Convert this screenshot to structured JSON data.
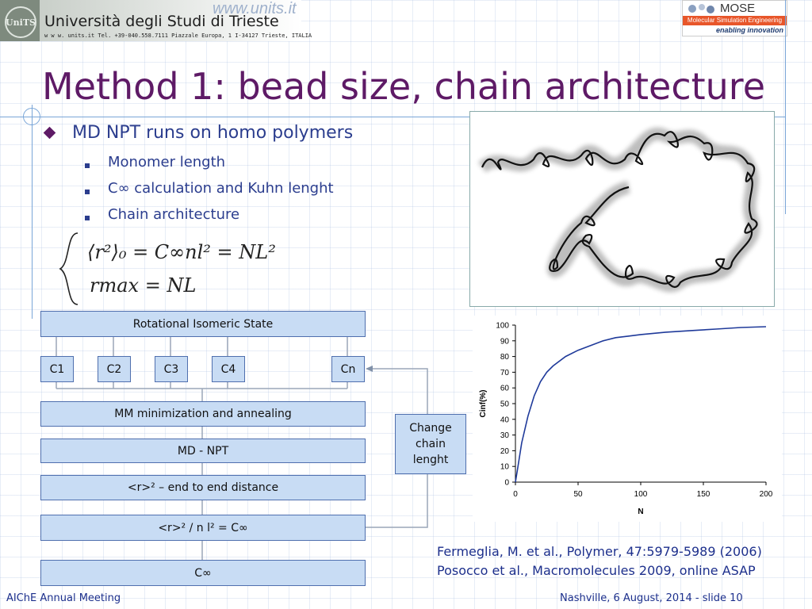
{
  "header": {
    "crest_text": "UniTS",
    "university": "Università degli Studi di Trieste",
    "address": "w w w. units.it  Tel. +39-040.558.7111  Piazzale Europa, 1  I-34127 Trieste, ITALIA",
    "units_logo": "www.units.it",
    "mose_name": "MOSE",
    "mose_subtitle": "Molecular Simulation Engineering",
    "mose_tagline": "enabling innovation"
  },
  "slide": {
    "title": "Method 1: bead size, chain architecture",
    "bullet_main": "MD NPT runs on homo polymers",
    "sub_bullets": [
      "Monomer length",
      "C∞ calculation and Kuhn lenght",
      "Chain architecture"
    ],
    "equation_1": "⟨r²⟩₀ = C∞nl² = NL²",
    "equation_2": "rmax = NL"
  },
  "flowchart": {
    "top": "Rotational Isomeric State",
    "chains": [
      "C1",
      "C2",
      "C3",
      "C4",
      "Cn"
    ],
    "steps": [
      "MM minimization and annealing",
      "MD - NPT",
      "<r>² – end to end distance",
      "<r>² / n l² = C∞",
      "C∞"
    ],
    "side_box": [
      "Change",
      "chain",
      "lenght"
    ]
  },
  "chart_data": {
    "type": "line",
    "xlabel": "N",
    "ylabel": "Cinf(%)",
    "xlim": [
      0,
      200
    ],
    "ylim": [
      0,
      100
    ],
    "x_ticks": [
      "0",
      "50",
      "100",
      "150",
      "200"
    ],
    "y_ticks": [
      "0",
      "10",
      "20",
      "30",
      "40",
      "50",
      "60",
      "70",
      "80",
      "90",
      "100"
    ],
    "grid": false,
    "x": [
      0,
      2,
      5,
      10,
      15,
      20,
      25,
      30,
      40,
      50,
      60,
      70,
      80,
      90,
      100,
      120,
      140,
      160,
      180,
      200
    ],
    "y": [
      0,
      10,
      25,
      42,
      55,
      64,
      70,
      74,
      80,
      84,
      87,
      90,
      92,
      93,
      94,
      95.5,
      96.5,
      97.5,
      98.5,
      99
    ],
    "line_color": "#1f3a9a"
  },
  "references": [
    "Fermeglia, M. et al., Polymer, 47:5979-5989 (2006)",
    "Posocco et al., Macromolecules 2009, online ASAP"
  ],
  "footer": {
    "left": "AIChE Annual Meeting",
    "right": "Nashville, 6 August, 2014 - slide 10"
  },
  "colors": {
    "title": "#5e1a66",
    "text": "#2b3d8e",
    "box_fill": "#c8dcf4",
    "box_border": "#4f6fae",
    "mose_orange": "#e8562a"
  }
}
